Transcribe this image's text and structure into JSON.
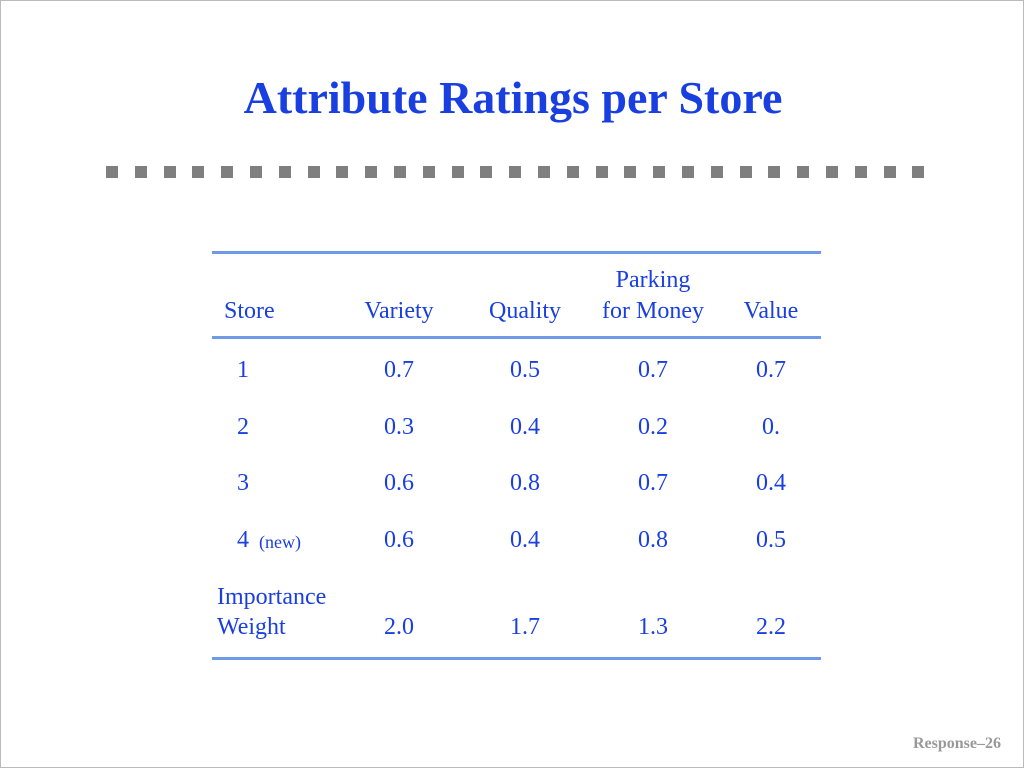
{
  "header": {
    "title": "Attribute Ratings per Store"
  },
  "table": {
    "columns": [
      [
        "Store"
      ],
      [
        "Variety"
      ],
      [
        "Quality"
      ],
      [
        "Parking",
        "for Money"
      ],
      [
        "Value"
      ]
    ],
    "rows": [
      {
        "store": "1",
        "cells": [
          "0.7",
          "0.5",
          "0.7",
          "0.7"
        ]
      },
      {
        "store": "2",
        "cells": [
          "0.3",
          "0.4",
          "0.2",
          "0."
        ]
      },
      {
        "store": "3",
        "cells": [
          "0.6",
          "0.8",
          "0.7",
          "0.4"
        ]
      },
      {
        "store": "4",
        "note": "(new)",
        "cells": [
          "0.6",
          "0.4",
          "0.8",
          "0.5"
        ]
      }
    ],
    "weights": {
      "label": [
        "Importance",
        "Weight"
      ],
      "cells": [
        "2.0",
        "1.7",
        "1.3",
        "2.2"
      ]
    }
  },
  "footer": {
    "page": "Response–26"
  }
}
